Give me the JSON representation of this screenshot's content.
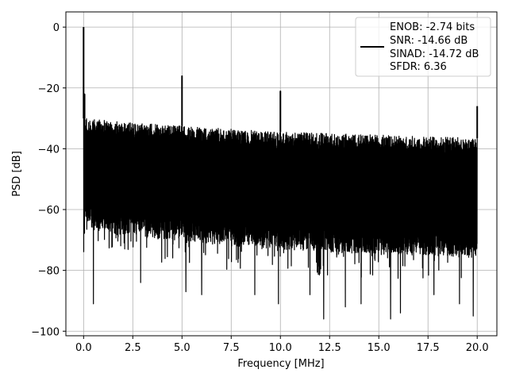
{
  "chart_data": {
    "type": "line",
    "title": "",
    "xlabel": "Frequency [MHz]",
    "ylabel": "PSD [dB]",
    "xlim": [
      -0.9,
      21.0
    ],
    "ylim": [
      -101.5,
      5.0
    ],
    "xticks": [
      0.0,
      2.5,
      5.0,
      7.5,
      10.0,
      12.5,
      15.0,
      17.5,
      20.0
    ],
    "xtick_labels": [
      "0.0",
      "2.5",
      "5.0",
      "7.5",
      "10.0",
      "12.5",
      "15.0",
      "17.5",
      "20.0"
    ],
    "yticks": [
      0,
      -20,
      -40,
      -60,
      -80,
      -100
    ],
    "ytick_labels": [
      "0",
      "−20",
      "−40",
      "−60",
      "−80",
      "−100"
    ],
    "grid": true,
    "legend_position": "top-right",
    "series": [
      {
        "name": "ENOB: -2.74 bits\nSNR: -14.66 dB\nSINAD: -14.72 dB\nSFDR: 6.36",
        "color": "#000000",
        "x_range": [
          0.0,
          20.0
        ],
        "noise_band_top": [
          [
            0.0,
            -30
          ],
          [
            2.5,
            -31.5
          ],
          [
            5.0,
            -32.5
          ],
          [
            7.5,
            -33.5
          ],
          [
            10.0,
            -34.5
          ],
          [
            12.5,
            -35
          ],
          [
            15.0,
            -35.5
          ],
          [
            17.5,
            -36
          ],
          [
            20.0,
            -36.5
          ]
        ],
        "noise_band_bottom": [
          [
            0.0,
            -66
          ],
          [
            2.5,
            -69
          ],
          [
            5.0,
            -70
          ],
          [
            7.5,
            -72
          ],
          [
            10.0,
            -73
          ],
          [
            12.5,
            -74
          ],
          [
            15.0,
            -75
          ],
          [
            17.5,
            -75
          ],
          [
            20.0,
            -76
          ]
        ],
        "dips": [
          [
            0.5,
            -91
          ],
          [
            2.9,
            -84
          ],
          [
            5.2,
            -87
          ],
          [
            6.0,
            -88
          ],
          [
            8.7,
            -88
          ],
          [
            9.9,
            -91
          ],
          [
            11.5,
            -88
          ],
          [
            12.2,
            -96
          ],
          [
            13.3,
            -92
          ],
          [
            14.1,
            -91
          ],
          [
            15.6,
            -96
          ],
          [
            16.1,
            -94
          ],
          [
            17.8,
            -88
          ],
          [
            19.1,
            -91
          ],
          [
            19.8,
            -95
          ]
        ],
        "peaks": [
          [
            0.0,
            0.0
          ],
          [
            0.05,
            -22
          ],
          [
            5.0,
            -16
          ],
          [
            10.0,
            -21
          ],
          [
            20.0,
            -26
          ]
        ]
      }
    ],
    "legend_lines": [
      "ENOB: -2.74 bits",
      "SNR: -14.66 dB",
      "SINAD: -14.72 dB",
      "SFDR: 6.36"
    ]
  }
}
